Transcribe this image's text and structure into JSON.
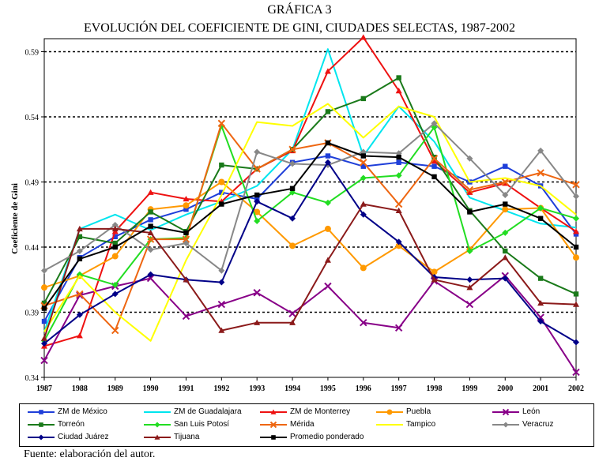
{
  "header": {
    "title": "GRÁFICA 3",
    "subtitle": "EVOLUCIÓN DEL COEFICIENTE DE GINI, CIUDADES SELECTAS, 1987-2002"
  },
  "source": "Fuente: elaboración del autor.",
  "chart_data": {
    "type": "line",
    "title": "GRÁFICA 3",
    "subtitle": "EVOLUCIÓN DEL COEFICIENTE DE GINI, CIUDADES SELECTAS, 1987-2002",
    "xlabel": "",
    "ylabel": "Coeficiente de Gini",
    "ylim": [
      0.34,
      0.6
    ],
    "yticks": [
      "0.34",
      "0.39",
      "0.44",
      "0.49",
      "0.54",
      "0.59"
    ],
    "ytick_values": [
      0.34,
      0.39,
      0.44,
      0.49,
      0.54,
      0.59
    ],
    "gridlines": "dotted horizontal",
    "legend_position": "bottom",
    "categories": [
      "1987",
      "1988",
      "1989",
      "1990",
      "1991",
      "1992",
      "1993",
      "1994",
      "1995",
      "1996",
      "1997",
      "1998",
      "1999",
      "2000",
      "2001",
      "2002"
    ],
    "series": [
      {
        "name": "ZM de México",
        "color": "#1f3fd9",
        "marker": "square",
        "values": [
          0.383,
          0.432,
          0.448,
          0.461,
          0.469,
          0.482,
          0.477,
          0.505,
          0.51,
          0.502,
          0.505,
          0.502,
          0.49,
          0.502,
          0.487,
          0.45
        ]
      },
      {
        "name": "ZM de Guadalajara",
        "color": "#00e5ee",
        "marker": "line",
        "values": [
          0.375,
          0.454,
          0.465,
          0.453,
          0.465,
          0.475,
          0.487,
          0.515,
          0.592,
          0.51,
          0.548,
          0.521,
          0.478,
          0.468,
          0.458,
          0.455
        ]
      },
      {
        "name": "ZM de Monterrey",
        "color": "#ee1111",
        "marker": "triangle",
        "values": [
          0.364,
          0.372,
          0.452,
          0.482,
          0.477,
          0.475,
          0.5,
          0.514,
          0.575,
          0.601,
          0.56,
          0.506,
          0.482,
          0.489,
          0.47,
          0.452
        ]
      },
      {
        "name": "Puebla",
        "color": "#ff9900",
        "marker": "circle",
        "values": [
          0.409,
          0.418,
          0.433,
          0.469,
          0.472,
          0.49,
          0.467,
          0.441,
          0.454,
          0.424,
          0.441,
          0.421,
          0.438,
          0.469,
          0.47,
          0.432
        ]
      },
      {
        "name": "León",
        "color": "#880088",
        "marker": "cross",
        "values": [
          0.353,
          0.403,
          0.41,
          0.416,
          0.387,
          0.396,
          0.405,
          0.389,
          0.41,
          0.382,
          0.378,
          0.414,
          0.396,
          0.418,
          0.386,
          0.344
        ]
      },
      {
        "name": "Torreón",
        "color": "#1a7a1a",
        "marker": "square",
        "values": [
          0.397,
          0.448,
          0.443,
          0.467,
          0.452,
          0.503,
          0.5,
          0.515,
          0.544,
          0.554,
          0.57,
          0.509,
          0.468,
          0.437,
          0.416,
          0.404
        ]
      },
      {
        "name": "San Luis Potosí",
        "color": "#22dd22",
        "marker": "diamond",
        "values": [
          0.368,
          0.419,
          0.411,
          0.446,
          0.447,
          0.533,
          0.46,
          0.482,
          0.474,
          0.493,
          0.495,
          0.532,
          0.437,
          0.451,
          0.47,
          0.462
        ]
      },
      {
        "name": "Mérida",
        "color": "#ee6611",
        "marker": "cross",
        "values": [
          0.395,
          0.404,
          0.376,
          0.446,
          0.446,
          0.535,
          0.5,
          0.515,
          0.52,
          0.505,
          0.473,
          0.508,
          0.484,
          0.49,
          0.497,
          0.488
        ]
      },
      {
        "name": "Tampico",
        "color": "#ffff00",
        "marker": "line",
        "values": [
          0.375,
          0.418,
          0.39,
          0.368,
          0.43,
          0.48,
          0.536,
          0.533,
          0.55,
          0.524,
          0.548,
          0.54,
          0.49,
          0.493,
          0.487,
          0.465
        ]
      },
      {
        "name": "Veracruz",
        "color": "#888888",
        "marker": "diamond",
        "values": [
          0.422,
          0.437,
          0.457,
          0.438,
          0.443,
          0.422,
          0.513,
          0.504,
          0.503,
          0.513,
          0.512,
          0.535,
          0.508,
          0.48,
          0.514,
          0.479
        ]
      },
      {
        "name": "Ciudad Juárez",
        "color": "#000088",
        "marker": "diamond",
        "values": [
          0.366,
          0.388,
          0.404,
          0.419,
          0.415,
          0.413,
          0.475,
          0.462,
          0.505,
          0.465,
          0.444,
          0.417,
          0.415,
          0.416,
          0.383,
          0.367
        ]
      },
      {
        "name": "Tijuana",
        "color": "#8b1a1a",
        "marker": "triangle",
        "values": [
          0.37,
          0.454,
          0.454,
          0.451,
          0.415,
          0.376,
          0.382,
          0.382,
          0.43,
          0.473,
          0.468,
          0.415,
          0.409,
          0.432,
          0.397,
          0.396
        ]
      },
      {
        "name": "Promedio ponderado",
        "color": "#000000",
        "marker": "square",
        "values": [
          0.393,
          0.431,
          0.44,
          0.456,
          0.451,
          0.473,
          0.48,
          0.485,
          0.52,
          0.51,
          0.509,
          0.494,
          0.467,
          0.473,
          0.462,
          0.44
        ]
      }
    ]
  }
}
